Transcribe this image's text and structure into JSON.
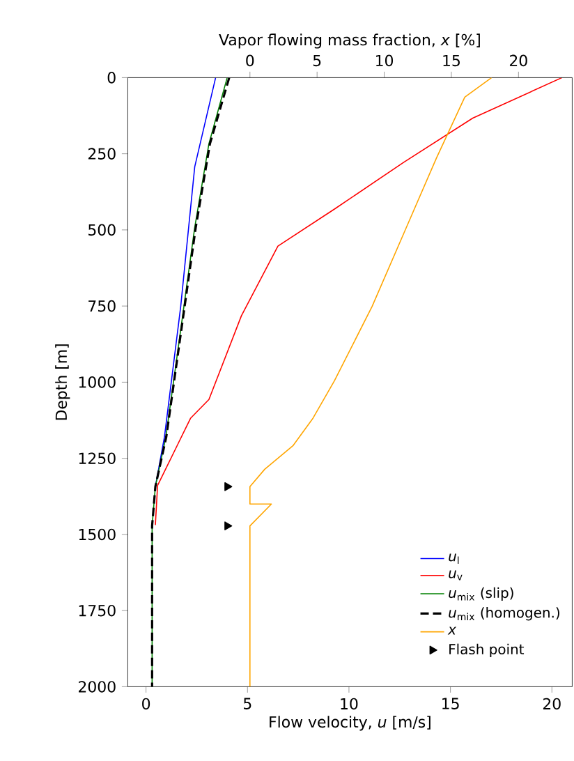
{
  "chart_data": {
    "type": "line",
    "xlabel": "Flow velocity, *u* [m/s]",
    "ylabel": "Depth [m]",
    "x2label": "Vapor flowing mass fraction, *x* [%]",
    "xlim": [
      -0.9,
      21
    ],
    "xticks": [
      0,
      5,
      10,
      15,
      20
    ],
    "x2lim": [
      -9.1,
      24
    ],
    "x2ticks": [
      0,
      5,
      10,
      15,
      20
    ],
    "ylim": [
      2000,
      0
    ],
    "yticks": [
      0,
      250,
      500,
      750,
      1000,
      1250,
      1500,
      1750,
      2000
    ],
    "legend": "bottom right",
    "grid": false,
    "series": [
      {
        "name": "*u*$_{l}$",
        "color": "#0000ff",
        "line_style": "solid",
        "marker": "none",
        "x": [
          3.43,
          2.4,
          1.71,
          0.91,
          0.46
        ],
        "values": [
          0,
          293,
          751,
          1179,
          1343
        ]
      },
      {
        "name": "*u*$_{v}$",
        "color": "#ff0000",
        "line_style": "solid",
        "marker": "none",
        "x": [
          20.5,
          16.1,
          12.7,
          9.3,
          6.5,
          4.7,
          3.1,
          2.2,
          0.57,
          0.46
        ],
        "values": [
          0,
          133,
          278,
          431,
          553,
          782,
          1057,
          1118,
          1339,
          1469
        ]
      },
      {
        "name": "*u*$_{mix}$ (slip)",
        "color": "#008000",
        "line_style": "solid",
        "marker": "none",
        "x": [
          4.0,
          3.1,
          2.4,
          1.71,
          0.98,
          0.46,
          0.3,
          0.3
        ],
        "values": [
          0,
          217,
          492,
          828,
          1179,
          1343,
          1472,
          2000
        ]
      },
      {
        "name": "*u*$_{mix}$ (homogen.)",
        "color": "#000000",
        "line_style": "dashed",
        "marker": "none",
        "x": [
          4.1,
          3.15,
          2.45,
          1.74,
          1.0,
          0.46,
          0.3,
          0.3
        ],
        "values": [
          0,
          217,
          492,
          828,
          1179,
          1343,
          1472,
          2000
        ]
      },
      {
        "name": "*x*",
        "color": "#ffa500",
        "axis": "x2",
        "line_style": "solid",
        "marker": "none",
        "x": [
          18.0,
          16.0,
          13.9,
          11.5,
          9.1,
          6.3,
          4.7,
          3.2,
          1.1,
          0,
          0,
          1.6,
          0,
          0
        ],
        "values": [
          0,
          64,
          263,
          507,
          751,
          995,
          1118,
          1209,
          1286,
          1343,
          1400,
          1400,
          1472,
          2000
        ]
      },
      {
        "name": "Flash point",
        "type": "scatter",
        "color": "#000000",
        "marker": "triangle",
        "x": [
          4.0,
          4.0
        ],
        "values": [
          1343,
          1472
        ]
      }
    ]
  }
}
